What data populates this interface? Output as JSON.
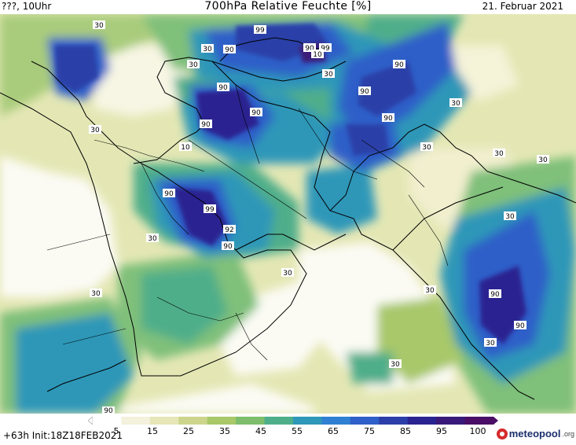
{
  "header": {
    "left": "???, 10Uhr",
    "title": "700hPa Relative Feuchte [%]",
    "date": "21. Februar 2021"
  },
  "footer": {
    "forecast_hour": "+63h",
    "init": "Init:18Z18FEB2021",
    "brand": "meteopool",
    "brand_tld": ".org"
  },
  "colorbar": {
    "colors": [
      "#ffffff",
      "#f4f1dc",
      "#e6e6b8",
      "#cdd58c",
      "#a8c86a",
      "#7dbd6c",
      "#4fae8a",
      "#2f97b8",
      "#2f7fd2",
      "#2f5fc8",
      "#2c3fa8",
      "#2a2490",
      "#3a1a78",
      "#4a0e66"
    ],
    "ticks": [
      "5",
      "15",
      "25",
      "35",
      "45",
      "55",
      "65",
      "75",
      "85",
      "95",
      "100"
    ]
  },
  "contour_labels": [
    "99",
    "90",
    "90",
    "99",
    "10",
    "90",
    "90",
    "90",
    "90",
    "90",
    "10",
    "90",
    "99",
    "92",
    "90",
    "90",
    "90",
    "90",
    "30",
    "30",
    "30",
    "30",
    "30",
    "30",
    "30",
    "30",
    "30",
    "30",
    "30",
    "30",
    "30",
    "90"
  ]
}
